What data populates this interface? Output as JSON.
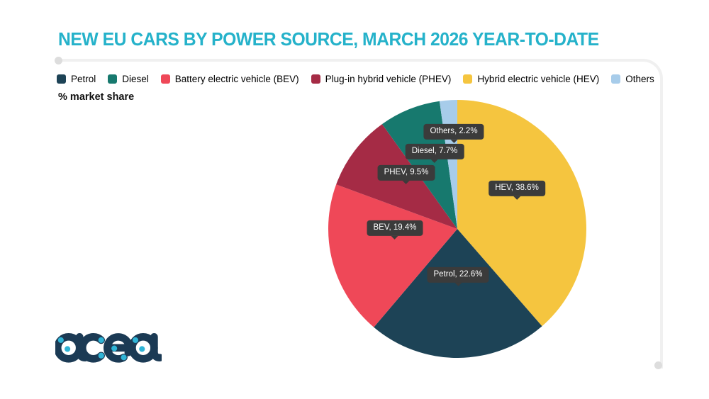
{
  "header": {
    "brand": "acea"
  },
  "chart_data": {
    "type": "pie",
    "title": "NEW EU CARS BY POWER SOURCE, MARCH 2026 YEAR-TO-DATE",
    "ylabel": "% market share",
    "series": [
      {
        "label": "Petrol",
        "short": "Petrol",
        "value": 22.6,
        "color": "#1D4356"
      },
      {
        "label": "Diesel",
        "short": "Diesel",
        "value": 7.7,
        "color": "#17796E"
      },
      {
        "label": "Battery electric vehicle (BEV)",
        "short": "BEV",
        "value": 19.4,
        "color": "#EF4858"
      },
      {
        "label": "Plug-in hybrid vehicle (PHEV)",
        "short": "PHEV",
        "value": 9.5,
        "color": "#A52B45"
      },
      {
        "label": "Hybrid electric vehicle (HEV)",
        "short": "HEV",
        "value": 38.6,
        "color": "#F5C53F"
      },
      {
        "label": "Others",
        "short": "Others",
        "value": 2.2,
        "color": "#A7CCEA"
      }
    ],
    "draw_order": [
      "HEV",
      "Petrol",
      "BEV",
      "PHEV",
      "Diesel",
      "Others"
    ],
    "start_angle_deg": 0,
    "direction": "clockwise",
    "legend_position": "top",
    "data_label_format": "{short}, {value}%",
    "label_positions": {
      "Others": [
        177,
        45
      ],
      "Diesel": [
        150,
        73
      ],
      "PHEV": [
        110,
        103
      ],
      "HEV": [
        266,
        125
      ],
      "BEV": [
        94,
        181
      ],
      "Petrol": [
        183,
        247
      ]
    },
    "colors": {
      "title": "#25B2CA",
      "tooltip_bg": "#3B3B3B",
      "tooltip_text": "#FFFFFF",
      "frame_line": "#F0F0F0",
      "logo_navy": "#1B3A54",
      "logo_cyan": "#2FB4D6"
    }
  }
}
